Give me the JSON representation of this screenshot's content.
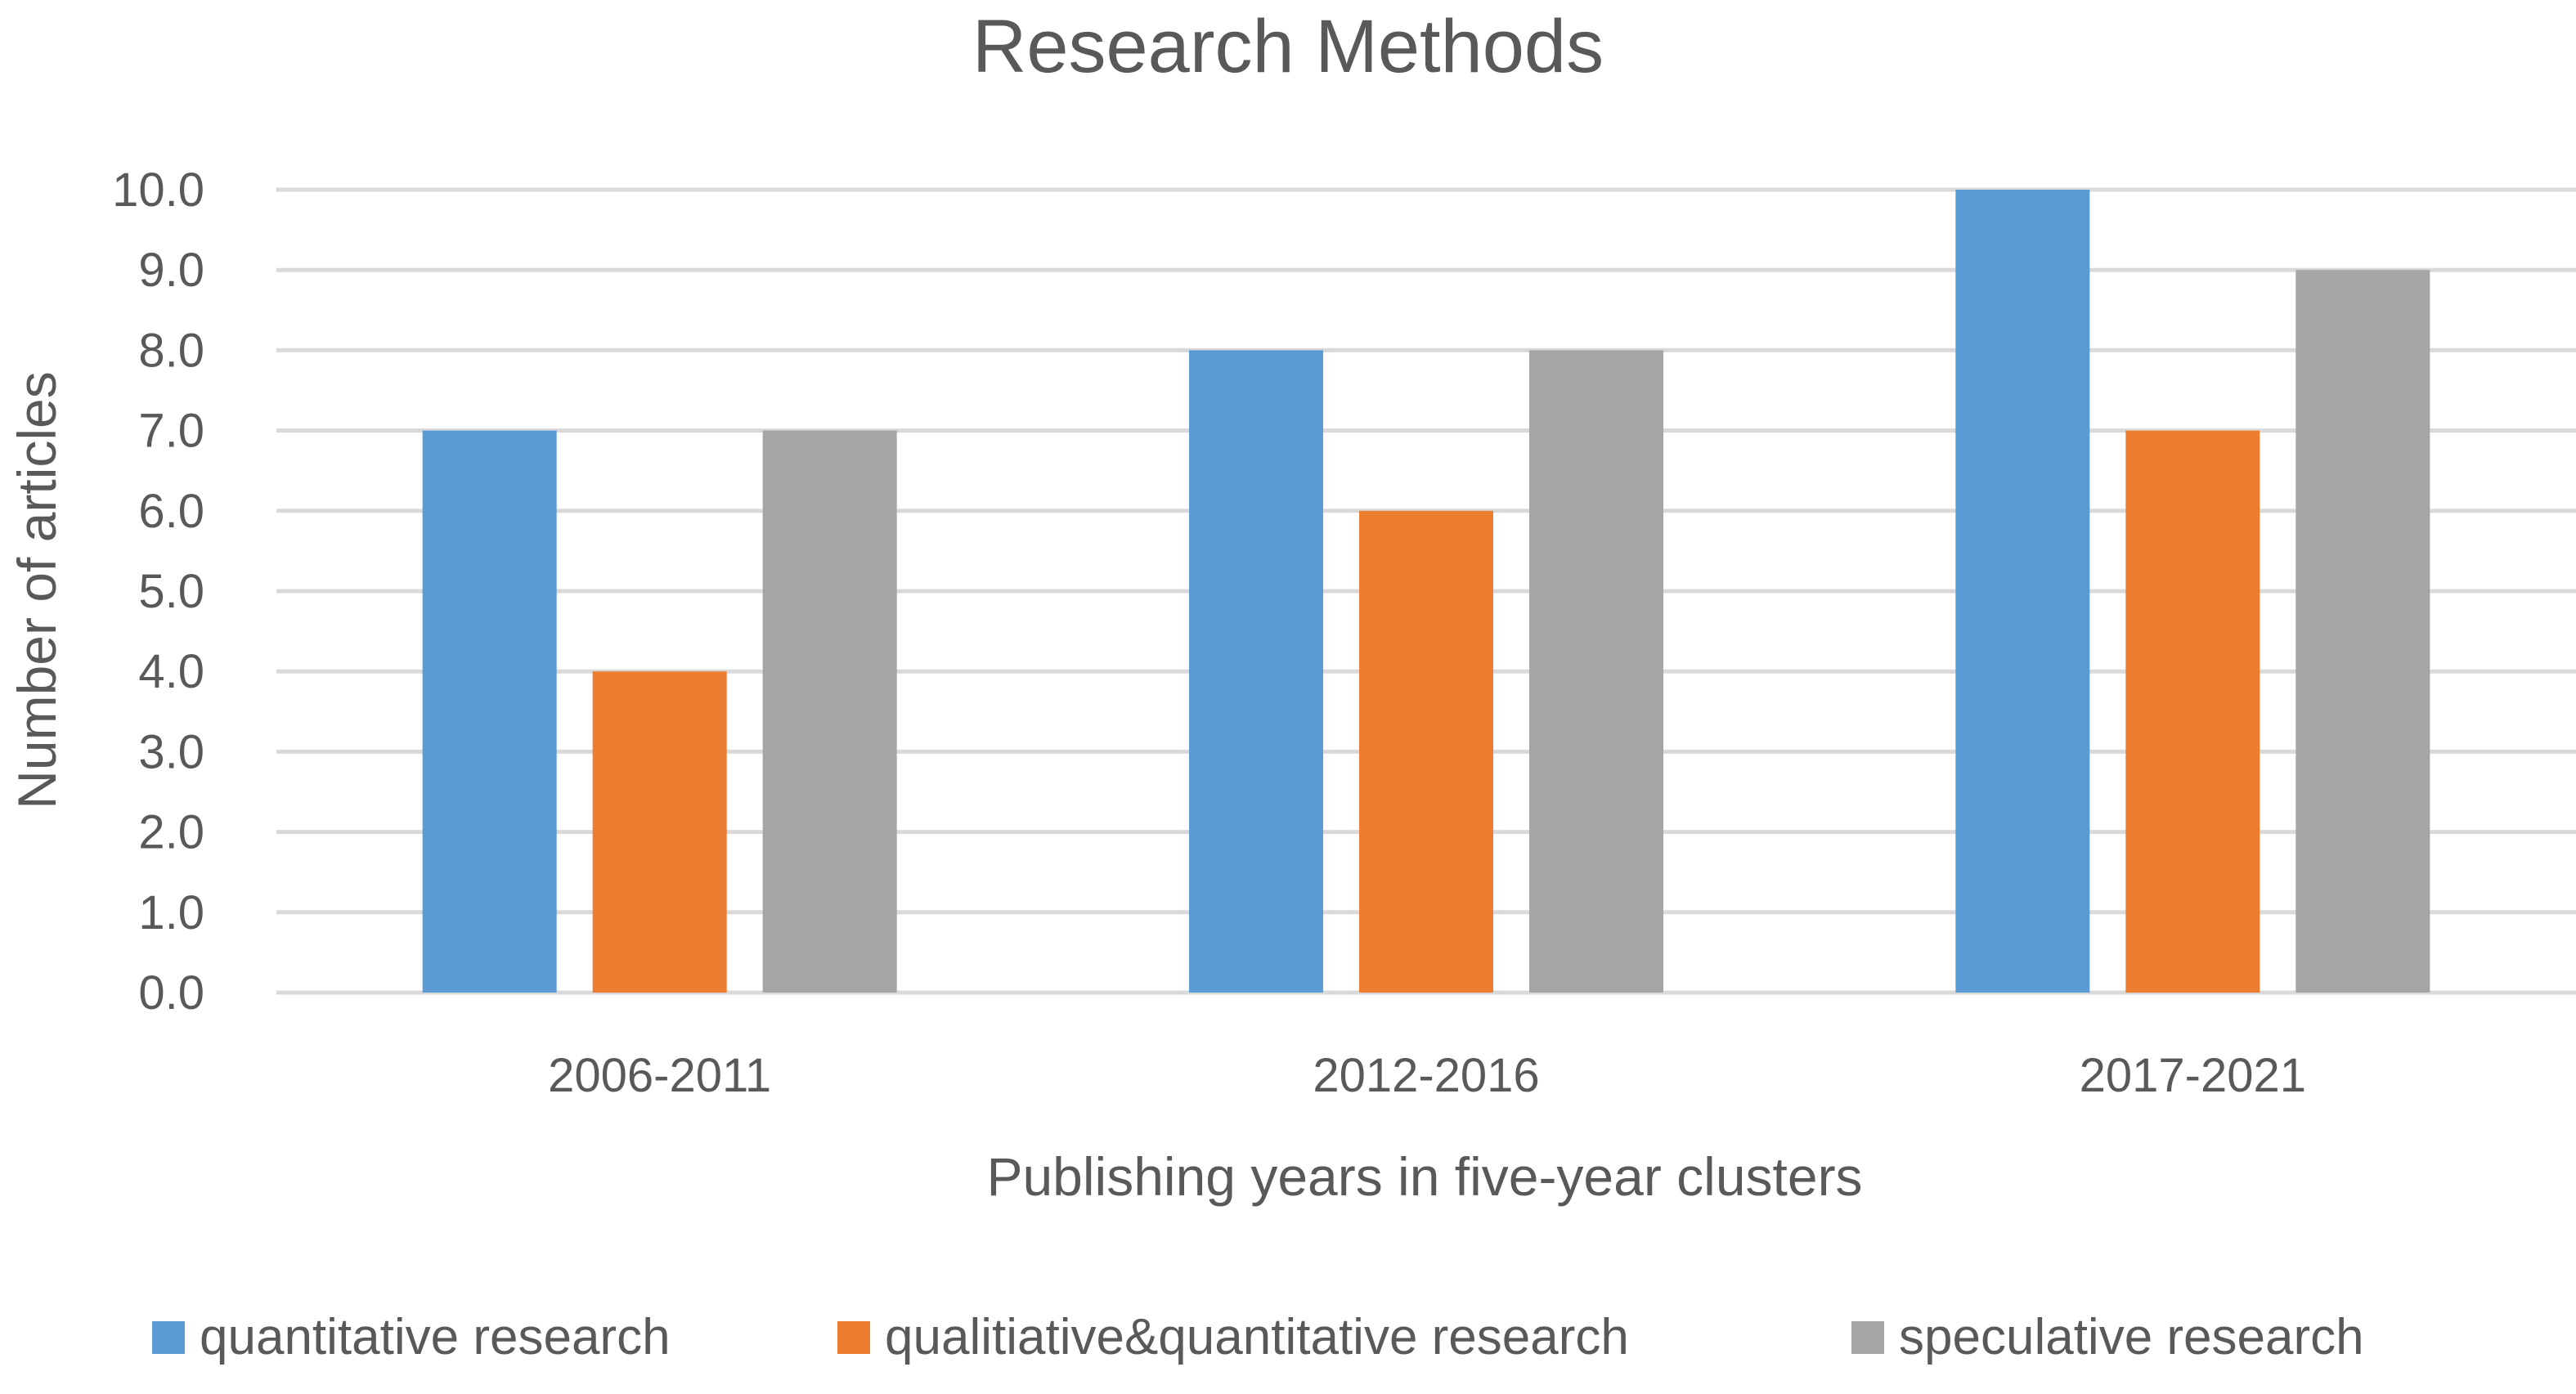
{
  "chart_data": {
    "type": "bar",
    "title": "Research Methods",
    "xlabel": "Publishing years in five-year clusters",
    "ylabel": "Number of articles",
    "categories": [
      "2006-2011",
      "2012-2016",
      "2017-2021"
    ],
    "series": [
      {
        "name": "quantitative research",
        "color": "#5b9bd5",
        "values": [
          7,
          8,
          10
        ]
      },
      {
        "name": "qualitiative&quantitative research",
        "color": "#ed7d31",
        "values": [
          4,
          6,
          7
        ]
      },
      {
        "name": "speculative research",
        "color": "#a5a5a5",
        "values": [
          7,
          8,
          9
        ]
      }
    ],
    "ylim": [
      0,
      10
    ],
    "yticks": [
      "0.0",
      "1.0",
      "2.0",
      "3.0",
      "4.0",
      "5.0",
      "6.0",
      "7.0",
      "8.0",
      "9.0",
      "10.0"
    ],
    "grid": true,
    "legend_position": "bottom"
  }
}
